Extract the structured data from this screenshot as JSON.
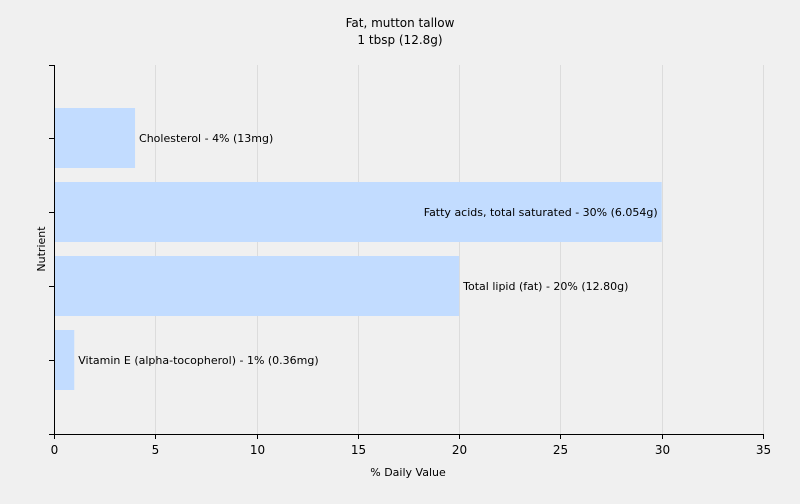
{
  "chart_data": {
    "type": "bar",
    "orientation": "horizontal",
    "title": "Fat, mutton tallow",
    "subtitle": "1 tbsp (12.8g)",
    "xlabel": "% Daily Value",
    "ylabel": "Nutrient",
    "xlim": [
      0,
      35
    ],
    "xticks": [
      0,
      5,
      10,
      15,
      20,
      25,
      30,
      35
    ],
    "grid": true,
    "bar_color": "#c2dcff",
    "bars": [
      {
        "name": "Cholesterol",
        "value": 4,
        "label": "Cholesterol - 4% (13mg)"
      },
      {
        "name": "Fatty acids, total saturated",
        "value": 30,
        "label": "Fatty acids, total saturated - 30% (6.054g)"
      },
      {
        "name": "Total lipid (fat)",
        "value": 20,
        "label": "Total lipid (fat) - 20% (12.80g)"
      },
      {
        "name": "Vitamin E (alpha-tocopherol)",
        "value": 1,
        "label": "Vitamin E (alpha-tocopherol) - 1% (0.36mg)"
      }
    ]
  }
}
